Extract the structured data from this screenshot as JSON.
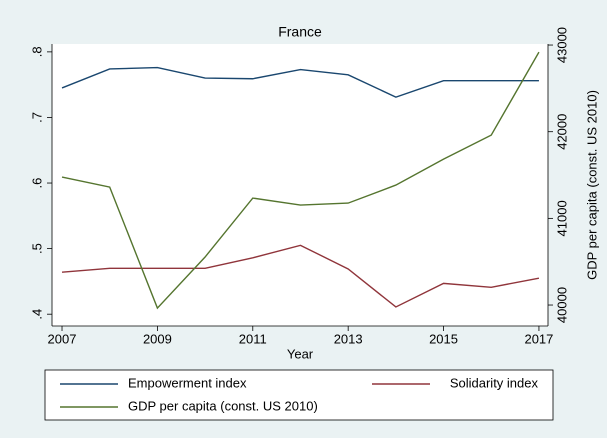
{
  "chart_data": {
    "type": "line",
    "title": "France",
    "xlabel": "Year",
    "y2label": "GDP per capita (const. US 2010)",
    "x": [
      2007,
      2008,
      2009,
      2010,
      2011,
      2012,
      2013,
      2014,
      2015,
      2016,
      2017
    ],
    "xlim": [
      2006.79,
      2017.19
    ],
    "xticks": [
      2007,
      2009,
      2011,
      2013,
      2015,
      2017
    ],
    "ylim": [
      0.382,
      0.812
    ],
    "yticks": [
      {
        "value": 0.4,
        "label": ".4"
      },
      {
        "value": 0.5,
        "label": ".5"
      },
      {
        "value": 0.6,
        "label": ".6"
      },
      {
        "value": 0.7,
        "label": ".7"
      },
      {
        "value": 0.8,
        "label": ".8"
      }
    ],
    "y2lim": [
      39758,
      43012
    ],
    "y2ticks": [
      40000,
      41000,
      42000,
      43000
    ],
    "grid": false,
    "series": [
      {
        "name": "Empowerment index",
        "color": "#1a476f",
        "values": [
          0.745,
          0.774,
          0.776,
          0.76,
          0.759,
          0.773,
          0.765,
          0.731,
          0.756,
          0.756,
          0.756
        ]
      },
      {
        "name": "Solidarity index",
        "color": "#90353b",
        "values": [
          0.464,
          0.47,
          0.47,
          0.47,
          0.486,
          0.505,
          0.469,
          0.411,
          0.447,
          0.441,
          0.455
        ]
      },
      {
        "name": "GDP per capita (const. US 2010)",
        "color": "#55752f",
        "axis": "y2",
        "values": [
          41476,
          41361,
          39965,
          40554,
          41234,
          41153,
          41176,
          41384,
          41684,
          41961,
          42918
        ]
      }
    ]
  }
}
